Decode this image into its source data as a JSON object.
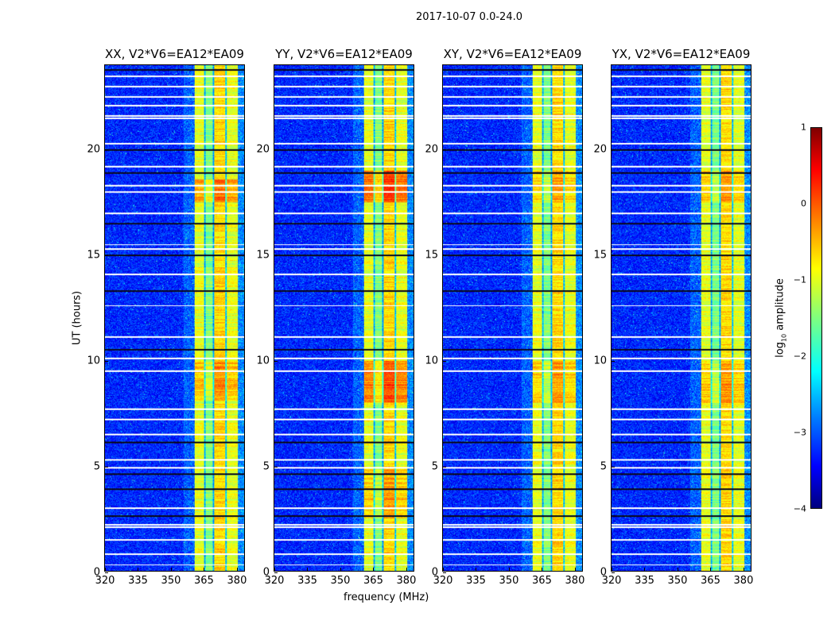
{
  "chart_data": {
    "type": "heatmap",
    "title": "2017-10-07 0.0-24.0",
    "xlabel": "frequency (MHz)",
    "ylabel": "UT (hours)",
    "xlim": [
      320,
      384
    ],
    "ylim": [
      0,
      24
    ],
    "xticks": [
      320,
      335,
      350,
      365,
      380
    ],
    "yticks": [
      0,
      5,
      10,
      15,
      20
    ],
    "panels": [
      {
        "title": "XX, V2*V6=EA12*EA09",
        "band_boost": [
          [
            8.1,
            10.0,
            0.4
          ],
          [
            17.5,
            18.6,
            0.5
          ]
        ]
      },
      {
        "title": "YY, V2*V6=EA12*EA09",
        "band_boost": [
          [
            8.0,
            10.0,
            0.7
          ],
          [
            17.5,
            19.0,
            0.8
          ],
          [
            2.5,
            5.0,
            0.3
          ]
        ]
      },
      {
        "title": "XY, V2*V6=EA12*EA09",
        "band_boost": [
          [
            8.0,
            10.0,
            0.3
          ],
          [
            17.5,
            19.0,
            0.3
          ]
        ]
      },
      {
        "title": "YX, V2*V6=EA12*EA09",
        "band_boost": [
          [
            8.0,
            10.0,
            0.35
          ],
          [
            17.5,
            19.0,
            0.35
          ]
        ]
      }
    ],
    "rfi_band_mhz": [
      361,
      381
    ],
    "flagged_hours": [
      0.3,
      0.8,
      1.5,
      2.1,
      2.2,
      3.0,
      4.9,
      5.3,
      6.5,
      7.2,
      7.7,
      9.5,
      10.1,
      11.1,
      12.6,
      14.1,
      15.3,
      15.5,
      17.0,
      18.0,
      18.3,
      19.2,
      20.3,
      21.5,
      21.6,
      22.1,
      22.5,
      23.0,
      23.5
    ],
    "dropout_hours": [
      2.6,
      3.9,
      4.6,
      6.1,
      10.5,
      13.3,
      15.0,
      16.5,
      18.9,
      20.0,
      23.8
    ],
    "colorbar": {
      "label_main": "log",
      "label_sub": "10",
      "label_tail": " amplitude",
      "range": [
        -4,
        1
      ],
      "ticks": [
        -4,
        -3,
        -2,
        -1,
        0,
        1
      ],
      "tick_labels": [
        "−4",
        "−3",
        "−2",
        "−1",
        "0",
        "1"
      ],
      "colormap": "jet"
    }
  }
}
